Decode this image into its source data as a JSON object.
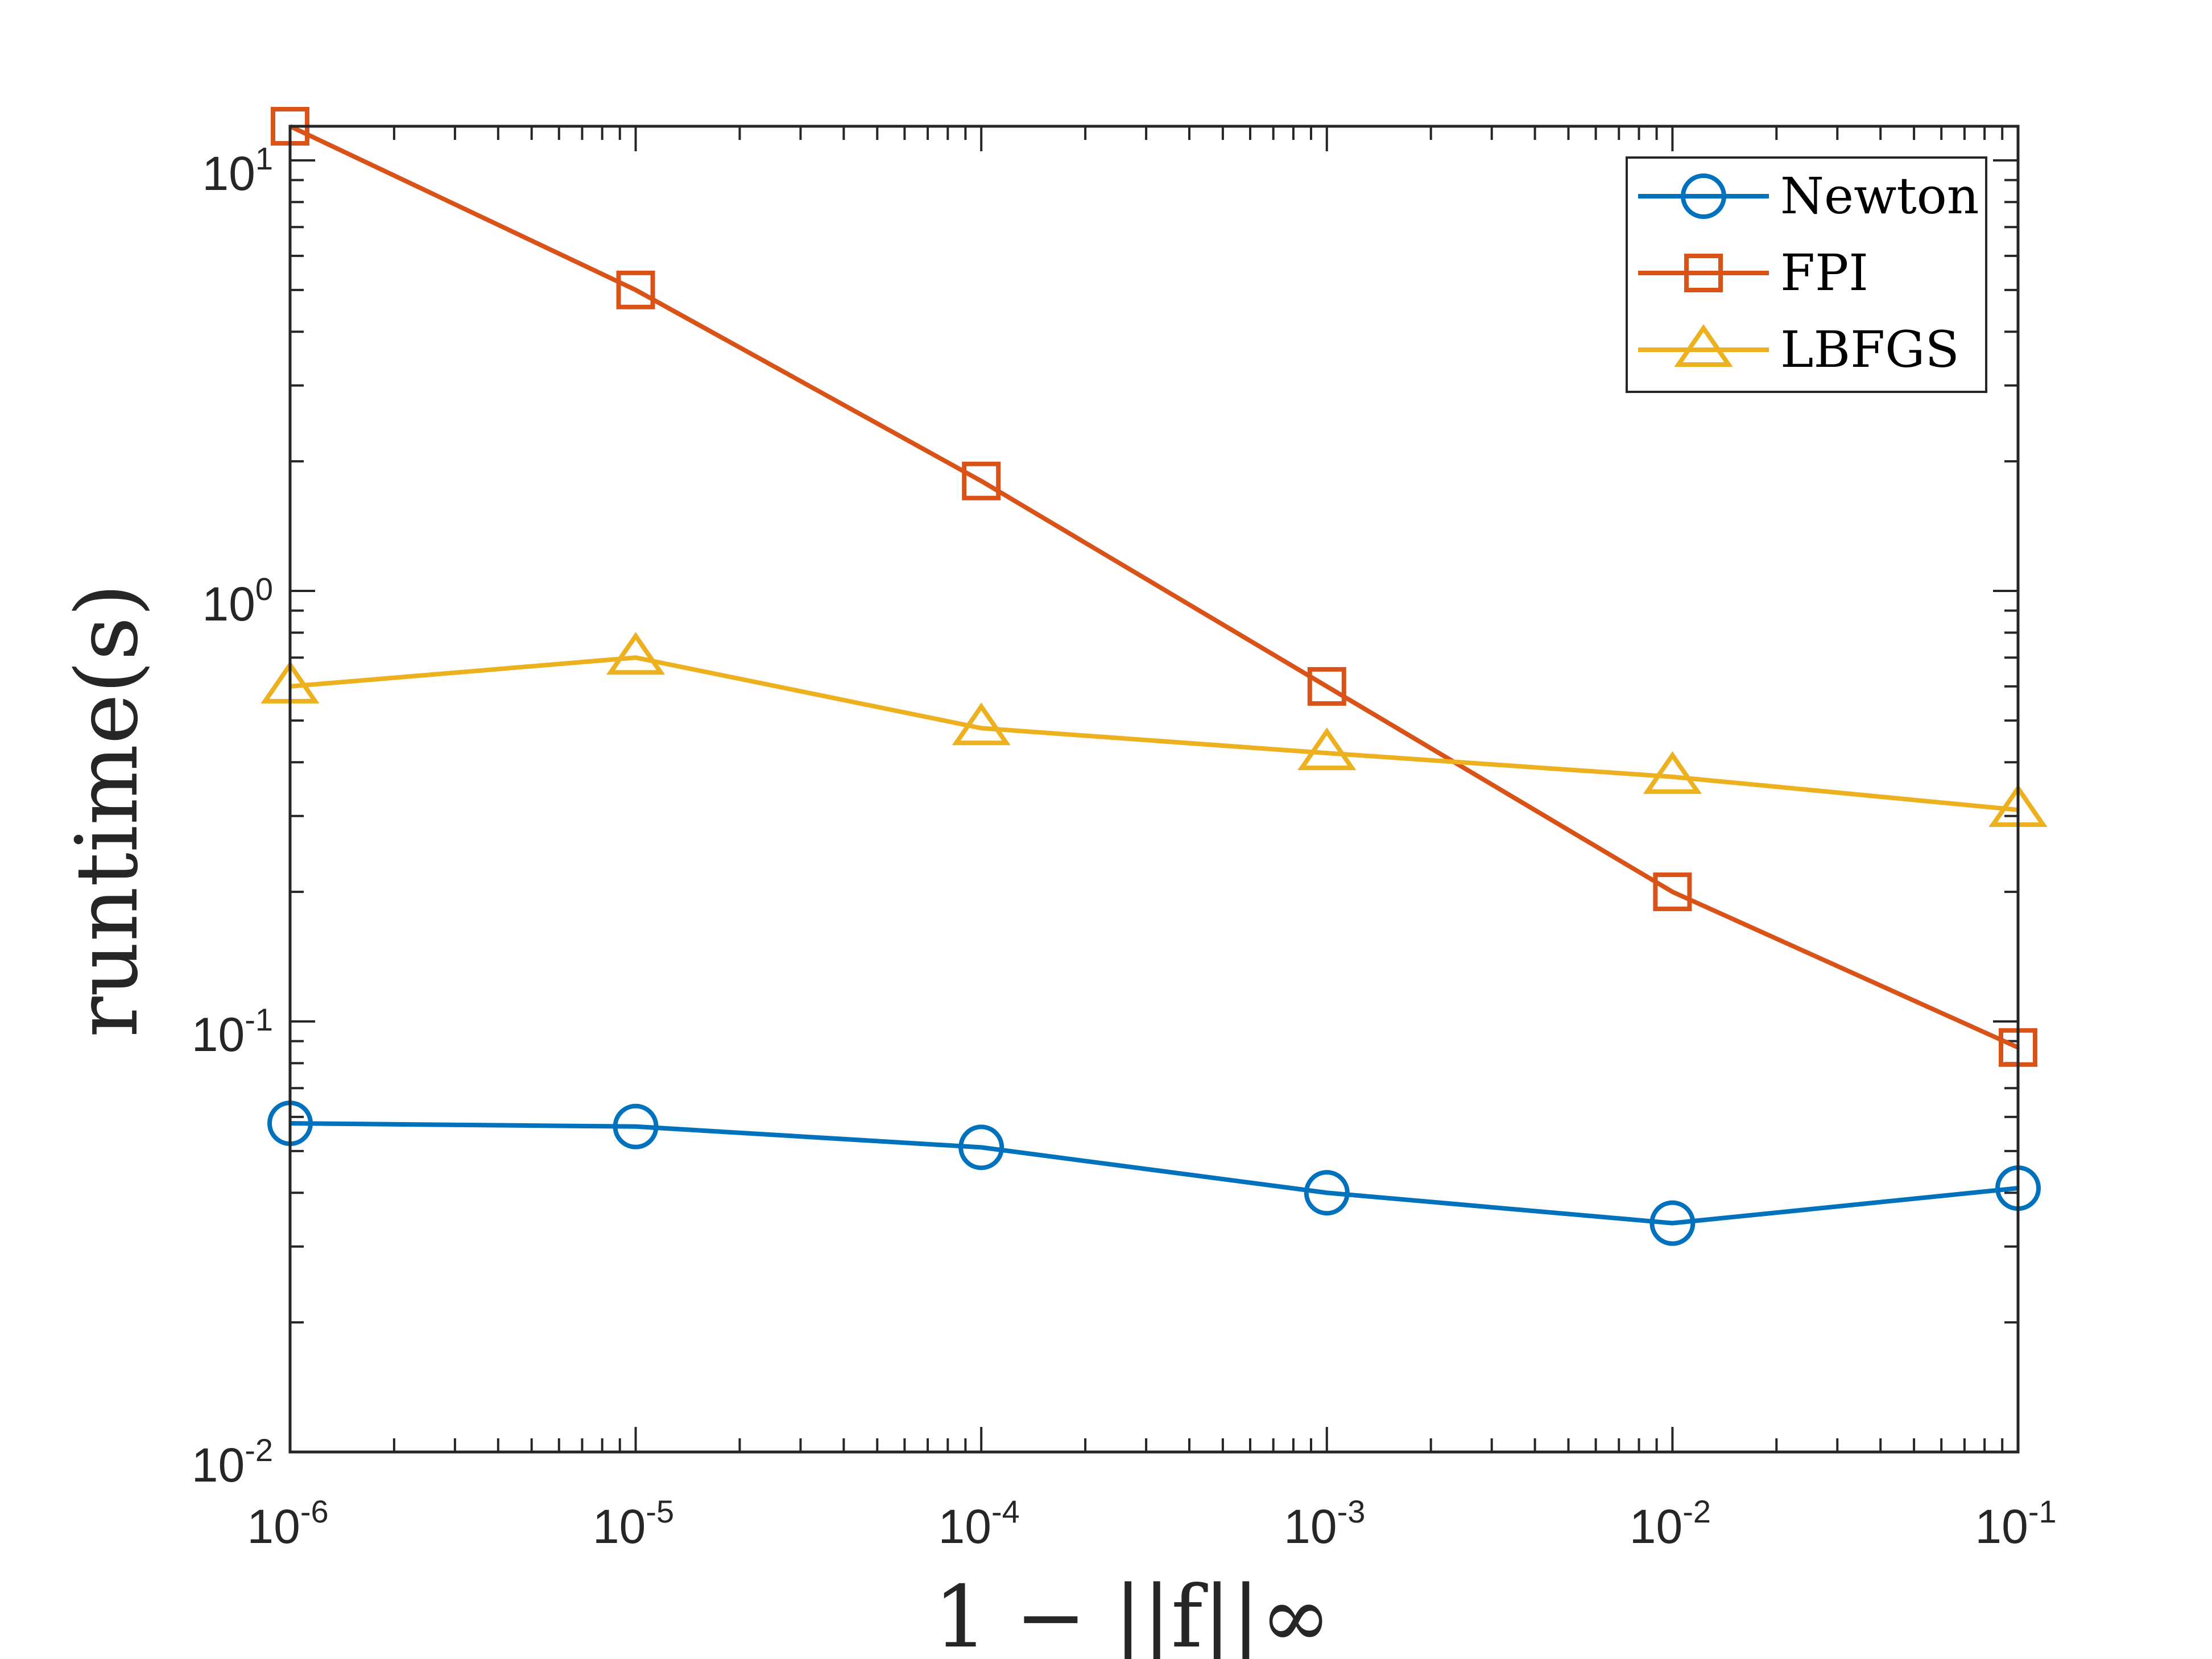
{
  "chart_data": {
    "type": "line",
    "title": "",
    "xlabel": "1 − ||f||∞",
    "ylabel": "runtime(s)",
    "xscale": "log",
    "yscale": "log",
    "xlim": [
      1e-06,
      0.1
    ],
    "ylim": [
      0.01,
      12
    ],
    "x": [
      1e-06,
      1e-05,
      0.0001,
      0.001,
      0.01,
      0.1
    ],
    "x_tick_labels": [
      {
        "base": "10",
        "exp": "-6",
        "value": 1e-06
      },
      {
        "base": "10",
        "exp": "-5",
        "value": 1e-05
      },
      {
        "base": "10",
        "exp": "-4",
        "value": 0.0001
      },
      {
        "base": "10",
        "exp": "-3",
        "value": 0.001
      },
      {
        "base": "10",
        "exp": "-2",
        "value": 0.01
      },
      {
        "base": "10",
        "exp": "-1",
        "value": 0.1
      }
    ],
    "y_tick_labels": [
      {
        "base": "10",
        "exp": "-2",
        "value": 0.01
      },
      {
        "base": "10",
        "exp": "-1",
        "value": 0.1
      },
      {
        "base": "10",
        "exp": "0",
        "value": 1
      },
      {
        "base": "10",
        "exp": "1",
        "value": 10
      }
    ],
    "grid": false,
    "legend_position": "top-right",
    "series": [
      {
        "name": "Newton",
        "color": "#0072BD",
        "marker": "circle",
        "values": [
          0.058,
          0.057,
          0.051,
          0.04,
          0.034,
          0.041
        ]
      },
      {
        "name": "FPI",
        "color": "#D95319",
        "marker": "square",
        "values": [
          12.0,
          5.0,
          1.8,
          0.6,
          0.2,
          0.087
        ]
      },
      {
        "name": "LBFGS",
        "color": "#EDB120",
        "marker": "triangle",
        "values": [
          0.6,
          0.7,
          0.48,
          0.42,
          0.37,
          0.31
        ]
      }
    ]
  }
}
